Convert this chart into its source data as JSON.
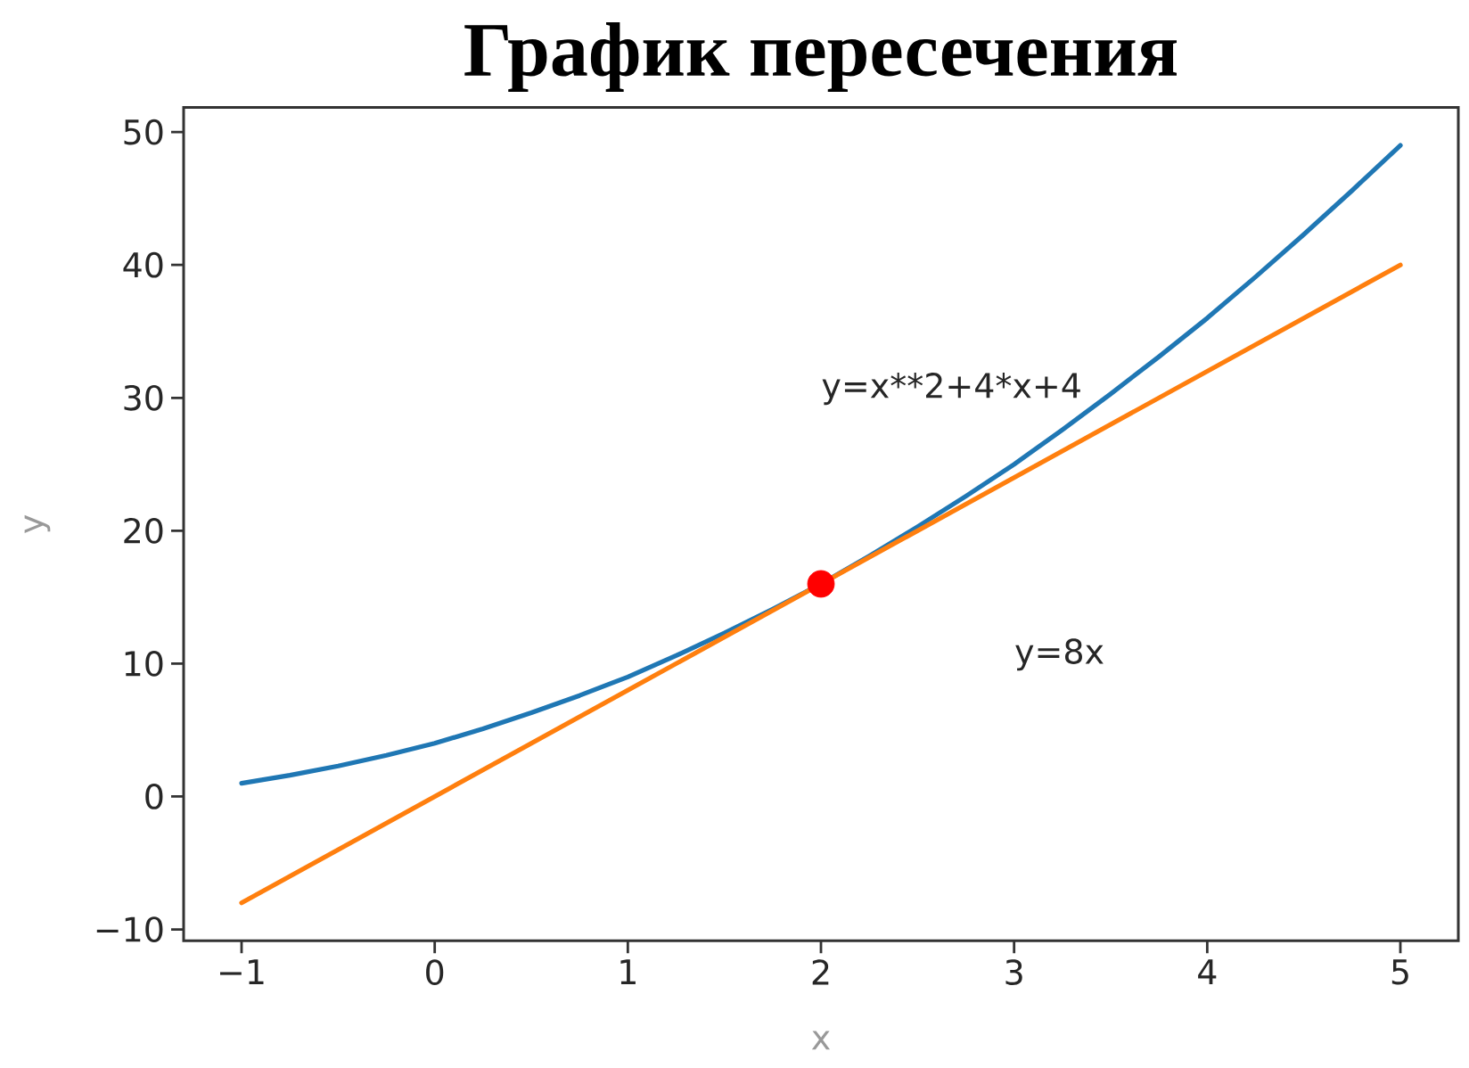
{
  "chart_data": {
    "type": "line",
    "title": "График пересечения",
    "xlabel": "x",
    "ylabel": "y",
    "series": [
      {
        "x": [
          -1,
          -0.75,
          -0.5,
          -0.25,
          0,
          0.25,
          0.5,
          0.75,
          1,
          1.25,
          1.5,
          1.75,
          2,
          2.25,
          2.5,
          2.75,
          3,
          3.25,
          3.5,
          3.75,
          4,
          4.25,
          4.5,
          4.75,
          5
        ],
        "values": [
          1,
          1.6,
          2.3,
          3.1,
          4,
          5.1,
          6.3,
          7.6,
          9,
          10.6,
          12.3,
          14.1,
          16,
          18.1,
          20.3,
          22.6,
          25,
          27.6,
          30.3,
          33.1,
          36,
          39.1,
          42.3,
          45.6,
          49
        ],
        "color": "#1f77b4"
      },
      {
        "x": [
          -1,
          2,
          5
        ],
        "values": [
          -8,
          16,
          40
        ],
        "color": "#ff7f0e"
      },
      {
        "type": "scatter",
        "x": [
          2
        ],
        "values": [
          16
        ],
        "color": "#ff0000",
        "marker": "circle"
      }
    ],
    "xlim": [
      -1.3,
      5.3
    ],
    "ylim": [
      -10.85,
      51.85
    ],
    "xticks": [
      {
        "value": -1,
        "label": "−1"
      },
      0,
      1,
      2,
      3,
      4,
      5
    ],
    "yticks": [
      {
        "value": -10,
        "label": "−10"
      },
      0,
      10,
      20,
      30,
      40,
      50
    ],
    "annotations": [
      "y=x**2+4*x+4",
      "y=8x"
    ]
  }
}
